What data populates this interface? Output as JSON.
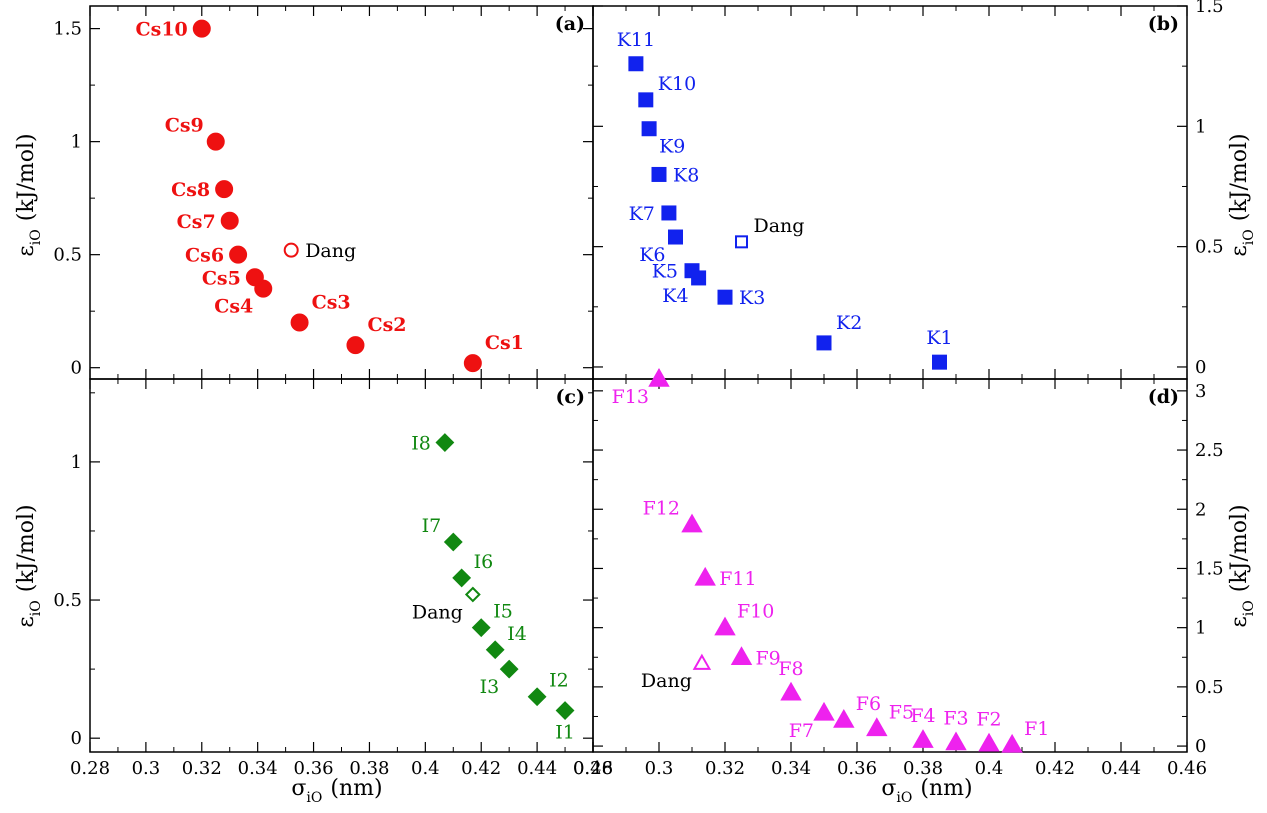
{
  "figure": {
    "x_label": "σ",
    "x_label_sub": "iO",
    "x_label_unit": "(nm)",
    "y_label": "ε",
    "y_label_sub": "iO",
    "y_label_unit": "(kJ/mol)"
  },
  "chart_data": [
    {
      "type": "scatter",
      "panel_label": "(a)",
      "color": "#ee1111",
      "marker": "circle",
      "label_bold": true,
      "xlim": [
        0.28,
        0.46
      ],
      "ylim": [
        -0.05,
        1.6
      ],
      "x_ticks": [
        "0.28",
        "0.3",
        "0.32",
        "0.34",
        "0.36",
        "0.38",
        "0.4",
        "0.42",
        "0.44",
        "0.46"
      ],
      "x_tick_values": [
        0.28,
        0.3,
        0.32,
        0.34,
        0.36,
        0.38,
        0.4,
        0.42,
        0.44,
        0.46
      ],
      "y_ticks": [
        "0",
        "0.5",
        "1",
        "1.5"
      ],
      "y_tick_values": [
        0,
        0.5,
        1.0,
        1.5
      ],
      "y_axis_side": "left",
      "show_x_tick_labels": false,
      "points": [
        {
          "label": "Cs1",
          "x": 0.417,
          "y": 0.02,
          "filled": true,
          "label_pos": "above-right"
        },
        {
          "label": "Cs2",
          "x": 0.375,
          "y": 0.1,
          "filled": true,
          "label_pos": "above-right"
        },
        {
          "label": "Cs3",
          "x": 0.355,
          "y": 0.2,
          "filled": true,
          "label_pos": "above-right"
        },
        {
          "label": "Cs4",
          "x": 0.342,
          "y": 0.35,
          "filled": true,
          "label_pos": "below-left"
        },
        {
          "label": "Cs5",
          "x": 0.339,
          "y": 0.4,
          "filled": true,
          "label_pos": "left"
        },
        {
          "label": "Cs6",
          "x": 0.333,
          "y": 0.5,
          "filled": true,
          "label_pos": "left"
        },
        {
          "label": "Cs7",
          "x": 0.33,
          "y": 0.65,
          "filled": true,
          "label_pos": "left"
        },
        {
          "label": "Cs8",
          "x": 0.328,
          "y": 0.79,
          "filled": true,
          "label_pos": "left"
        },
        {
          "label": "Cs9",
          "x": 0.325,
          "y": 1.0,
          "filled": true,
          "label_pos": "upper-left"
        },
        {
          "label": "Cs10",
          "x": 0.32,
          "y": 1.5,
          "filled": true,
          "label_pos": "left"
        },
        {
          "label": "Dang",
          "x": 0.352,
          "y": 0.52,
          "filled": false,
          "label_pos": "right",
          "label_black": true
        }
      ]
    },
    {
      "type": "scatter",
      "panel_label": "(b)",
      "color": "#1122ee",
      "marker": "square",
      "label_bold": false,
      "xlim": [
        0.28,
        0.46
      ],
      "ylim": [
        -0.05,
        1.5
      ],
      "x_ticks": [
        "0.28",
        "0.3",
        "0.32",
        "0.34",
        "0.36",
        "0.38",
        "0.4",
        "0.42",
        "0.44",
        "0.46"
      ],
      "x_tick_values": [
        0.28,
        0.3,
        0.32,
        0.34,
        0.36,
        0.38,
        0.4,
        0.42,
        0.44,
        0.46
      ],
      "y_ticks": [
        "0",
        "0.5",
        "1",
        "1.5"
      ],
      "y_tick_values": [
        0,
        0.5,
        1.0,
        1.5
      ],
      "y_axis_side": "right",
      "show_x_tick_labels": false,
      "points": [
        {
          "label": "K1",
          "x": 0.385,
          "y": 0.02,
          "filled": true,
          "label_pos": "above"
        },
        {
          "label": "K2",
          "x": 0.35,
          "y": 0.1,
          "filled": true,
          "label_pos": "above-right"
        },
        {
          "label": "K3",
          "x": 0.32,
          "y": 0.29,
          "filled": true,
          "label_pos": "right"
        },
        {
          "label": "K4",
          "x": 0.312,
          "y": 0.37,
          "filled": true,
          "label_pos": "below-left"
        },
        {
          "label": "K5",
          "x": 0.31,
          "y": 0.4,
          "filled": true,
          "label_pos": "left"
        },
        {
          "label": "K6",
          "x": 0.305,
          "y": 0.54,
          "filled": true,
          "label_pos": "below-left"
        },
        {
          "label": "K7",
          "x": 0.303,
          "y": 0.64,
          "filled": true,
          "label_pos": "left"
        },
        {
          "label": "K8",
          "x": 0.3,
          "y": 0.8,
          "filled": true,
          "label_pos": "right"
        },
        {
          "label": "K9",
          "x": 0.297,
          "y": 0.99,
          "filled": true,
          "label_pos": "below-right"
        },
        {
          "label": "K10",
          "x": 0.296,
          "y": 1.11,
          "filled": true,
          "label_pos": "upper-right"
        },
        {
          "label": "K11",
          "x": 0.293,
          "y": 1.26,
          "filled": true,
          "label_pos": "above"
        },
        {
          "label": "Dang",
          "x": 0.325,
          "y": 0.52,
          "filled": false,
          "label_pos": "upper-right",
          "label_black": true
        }
      ]
    },
    {
      "type": "scatter",
      "panel_label": "(c)",
      "color": "#118811",
      "marker": "diamond",
      "label_bold": false,
      "xlim": [
        0.28,
        0.46
      ],
      "ylim": [
        -0.05,
        1.3
      ],
      "x_ticks": [
        "0.28",
        "0.3",
        "0.32",
        "0.34",
        "0.36",
        "0.38",
        "0.4",
        "0.42",
        "0.44",
        "0.46"
      ],
      "x_tick_values": [
        0.28,
        0.3,
        0.32,
        0.34,
        0.36,
        0.38,
        0.4,
        0.42,
        0.44,
        0.46
      ],
      "y_ticks": [
        "0",
        "0.5",
        "1"
      ],
      "y_tick_values": [
        0,
        0.5,
        1.0
      ],
      "y_axis_side": "left",
      "show_x_tick_labels": true,
      "points": [
        {
          "label": "I1",
          "x": 0.45,
          "y": 0.1,
          "filled": true,
          "label_pos": "below"
        },
        {
          "label": "I2",
          "x": 0.44,
          "y": 0.15,
          "filled": true,
          "label_pos": "upper-right"
        },
        {
          "label": "I3",
          "x": 0.43,
          "y": 0.25,
          "filled": true,
          "label_pos": "below-left"
        },
        {
          "label": "I4",
          "x": 0.425,
          "y": 0.32,
          "filled": true,
          "label_pos": "upper-right"
        },
        {
          "label": "I5",
          "x": 0.42,
          "y": 0.4,
          "filled": true,
          "label_pos": "upper-right"
        },
        {
          "label": "I6",
          "x": 0.413,
          "y": 0.58,
          "filled": true,
          "label_pos": "upper-right"
        },
        {
          "label": "I7",
          "x": 0.41,
          "y": 0.71,
          "filled": true,
          "label_pos": "upper-left"
        },
        {
          "label": "I8",
          "x": 0.407,
          "y": 1.07,
          "filled": true,
          "label_pos": "left"
        },
        {
          "label": "Dang",
          "x": 0.417,
          "y": 0.52,
          "filled": false,
          "label_pos": "below-left",
          "label_black": true
        }
      ]
    },
    {
      "type": "scatter",
      "panel_label": "(d)",
      "color": "#ee22ee",
      "marker": "triangle",
      "label_bold": false,
      "xlim": [
        0.28,
        0.46
      ],
      "ylim": [
        -0.05,
        3.1
      ],
      "x_ticks": [
        "0.28",
        "0.3",
        "0.32",
        "0.34",
        "0.36",
        "0.38",
        "0.4",
        "0.42",
        "0.44",
        "0.46"
      ],
      "x_tick_values": [
        0.28,
        0.3,
        0.32,
        0.34,
        0.36,
        0.38,
        0.4,
        0.42,
        0.44,
        0.46
      ],
      "y_ticks": [
        "0",
        "0.5",
        "1",
        "1.5",
        "2",
        "2.5",
        "3"
      ],
      "y_tick_values": [
        0,
        0.5,
        1.0,
        1.5,
        2.0,
        2.5,
        3.0
      ],
      "y_axis_side": "right",
      "show_x_tick_labels": true,
      "points": [
        {
          "label": "F1",
          "x": 0.407,
          "y": 0.01,
          "filled": true,
          "label_pos": "upper-right"
        },
        {
          "label": "F2",
          "x": 0.4,
          "y": 0.02,
          "filled": true,
          "label_pos": "above"
        },
        {
          "label": "F3",
          "x": 0.39,
          "y": 0.03,
          "filled": true,
          "label_pos": "above"
        },
        {
          "label": "F4",
          "x": 0.38,
          "y": 0.05,
          "filled": true,
          "label_pos": "above"
        },
        {
          "label": "F5",
          "x": 0.366,
          "y": 0.15,
          "filled": true,
          "label_pos": "upper-right"
        },
        {
          "label": "F6",
          "x": 0.356,
          "y": 0.22,
          "filled": true,
          "label_pos": "upper-right"
        },
        {
          "label": "F7",
          "x": 0.35,
          "y": 0.28,
          "filled": true,
          "label_pos": "below-left"
        },
        {
          "label": "F8",
          "x": 0.34,
          "y": 0.45,
          "filled": true,
          "label_pos": "above"
        },
        {
          "label": "F9",
          "x": 0.325,
          "y": 0.75,
          "filled": true,
          "label_pos": "right"
        },
        {
          "label": "F10",
          "x": 0.32,
          "y": 1.0,
          "filled": true,
          "label_pos": "upper-right"
        },
        {
          "label": "F11",
          "x": 0.314,
          "y": 1.42,
          "filled": true,
          "label_pos": "right"
        },
        {
          "label": "F12",
          "x": 0.31,
          "y": 1.87,
          "filled": true,
          "label_pos": "upper-left"
        },
        {
          "label": "F13",
          "x": 0.3,
          "y": 3.1,
          "filled": true,
          "label_pos": "below-left"
        },
        {
          "label": "Dang",
          "x": 0.313,
          "y": 0.7,
          "filled": false,
          "label_pos": "below-left",
          "label_black": true
        }
      ]
    }
  ]
}
